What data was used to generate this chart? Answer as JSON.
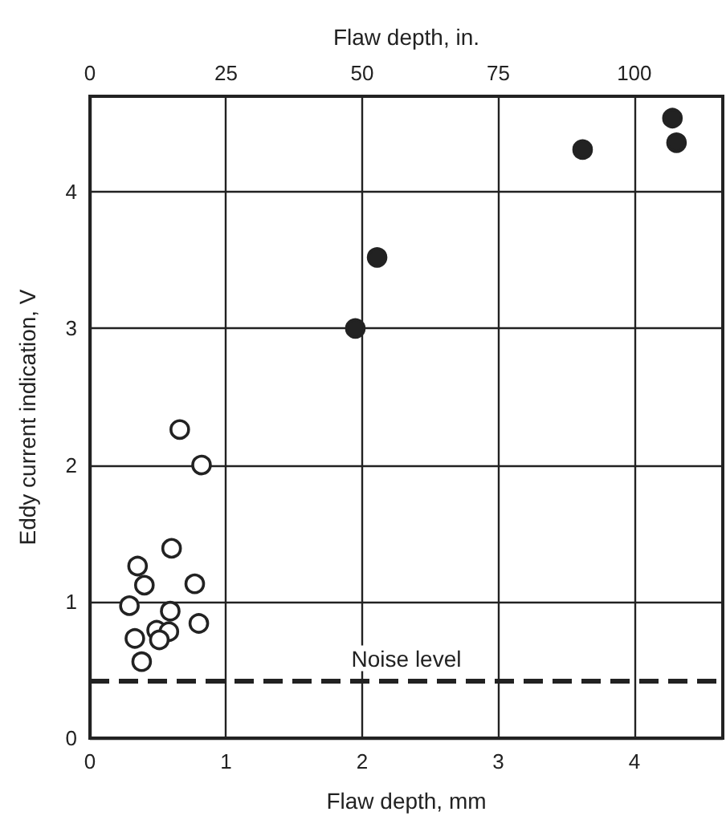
{
  "chart_data": {
    "type": "scatter",
    "xlabel": "Flaw depth, mm",
    "x2label": "Flaw depth, in.",
    "ylabel": "Eddy current indication, V",
    "xlim": [
      0,
      4.65
    ],
    "xticks": [
      0,
      1,
      2,
      3,
      4
    ],
    "x2lim": [
      0,
      116.25
    ],
    "x2ticks": [
      0,
      25,
      50,
      75,
      100
    ],
    "ylim": [
      0,
      4.7
    ],
    "yticks": [
      0,
      1,
      2,
      3,
      4
    ],
    "series": [
      {
        "color": "#ffffff",
        "x": [
          0.66,
          0.82,
          0.6,
          0.35,
          0.4,
          0.77,
          0.29,
          0.59,
          0.8,
          0.33,
          0.49,
          0.58,
          0.51,
          0.38
        ],
        "values": [
          2.26,
          2.0,
          1.39,
          1.26,
          1.12,
          1.13,
          0.97,
          0.93,
          0.84,
          0.73,
          0.79,
          0.78,
          0.72,
          0.56
        ]
      },
      {
        "color": "#222222",
        "x": [
          1.95,
          2.11,
          3.62,
          4.28,
          4.31
        ],
        "values": [
          3.0,
          3.52,
          4.31,
          4.54,
          4.36
        ]
      }
    ],
    "ref_lines": [
      {
        "axis": "y",
        "value": 0.42,
        "label": "Noise level",
        "line_style": "dashed",
        "color": "#222222"
      }
    ],
    "grid": true,
    "marker": "circle"
  }
}
